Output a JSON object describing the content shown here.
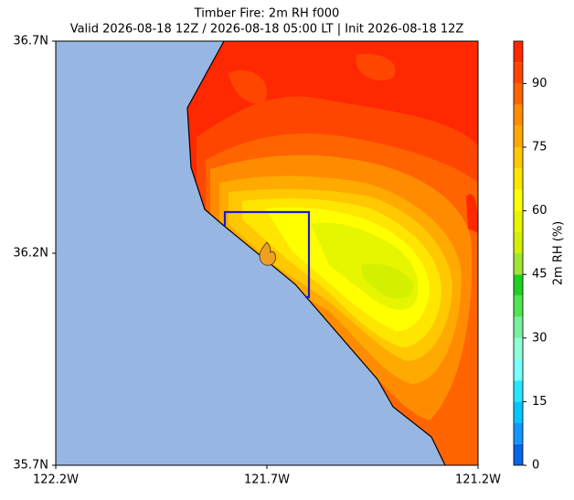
{
  "chart_data": {
    "type": "contourf",
    "title": "Timber Fire: 2m RH f000",
    "subtitle": "Valid 2026-08-18 12Z / 2026-08-18 05:00 LT | Init 2026-08-18 12Z",
    "xlim": [
      -122.2,
      -121.2
    ],
    "ylim": [
      35.7,
      36.7
    ],
    "xticks": [
      {
        "value": -122.2,
        "label": "122.2W"
      },
      {
        "value": -121.7,
        "label": "121.7W"
      },
      {
        "value": -121.2,
        "label": "121.2W"
      }
    ],
    "yticks": [
      {
        "value": 35.7,
        "label": "35.7N"
      },
      {
        "value": 36.2,
        "label": "36.2N"
      },
      {
        "value": 36.7,
        "label": "36.7N"
      }
    ],
    "colorbar": {
      "label": "2m RH (%)",
      "lim": [
        0,
        100
      ],
      "ticks": [
        0,
        15,
        30,
        45,
        60,
        75,
        90
      ],
      "levels": [
        0,
        5,
        10,
        15,
        20,
        25,
        30,
        35,
        40,
        45,
        50,
        55,
        60,
        65,
        70,
        75,
        80,
        85,
        90,
        95,
        100
      ],
      "colors": [
        "#0a64e6",
        "#1496ff",
        "#00c8ff",
        "#28e6ff",
        "#78ffff",
        "#90ffd8",
        "#78f0a0",
        "#50e650",
        "#20d020",
        "#a0e632",
        "#d2f000",
        "#e6f500",
        "#ffff00",
        "#ffe600",
        "#ffc800",
        "#ffaa00",
        "#ff8c00",
        "#ff6400",
        "#ff4600",
        "#ff2800"
      ]
    }
  }
}
